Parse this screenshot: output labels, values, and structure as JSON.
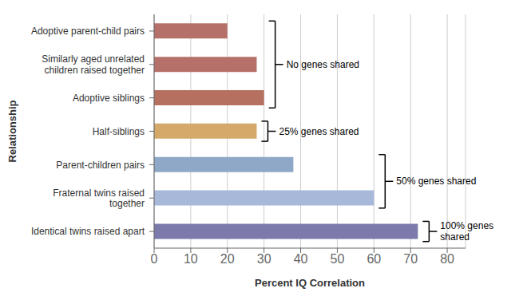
{
  "chart_data": {
    "type": "bar",
    "orientation": "horizontal",
    "categories": [
      "Adoptive parent-child pairs",
      "Similarly aged unrelated\nchildren raised together",
      "Adoptive siblings",
      "Half-siblings",
      "Parent-children pairs",
      "Fraternal twins raised\ntogether",
      "Identical twins raised apart"
    ],
    "values": [
      20,
      28,
      30,
      28,
      38,
      60,
      72
    ],
    "colors": [
      "#b5706a",
      "#b5706a",
      "#b57060",
      "#d4a96a",
      "#8fa8c8",
      "#a8b8d8",
      "#7b7aaa"
    ],
    "xlabel": "Percent IQ Correlation",
    "ylabel": "Relationship",
    "xlim": [
      0,
      85
    ],
    "xticks": [
      0,
      10,
      20,
      30,
      40,
      50,
      60,
      70,
      80
    ],
    "grid": true,
    "annotations": [
      {
        "text": "No genes shared",
        "categories": [
          "Adoptive parent-child pairs",
          "Similarly aged unrelated\nchildren raised together",
          "Adoptive siblings"
        ]
      },
      {
        "text": "25% genes shared",
        "categories": [
          "Half-siblings"
        ]
      },
      {
        "text": "50% genes shared",
        "categories": [
          "Parent-children pairs",
          "Fraternal twins raised\ntogether"
        ]
      },
      {
        "text": "100% genes\nshared",
        "categories": [
          "Identical twins raised apart"
        ]
      }
    ]
  }
}
